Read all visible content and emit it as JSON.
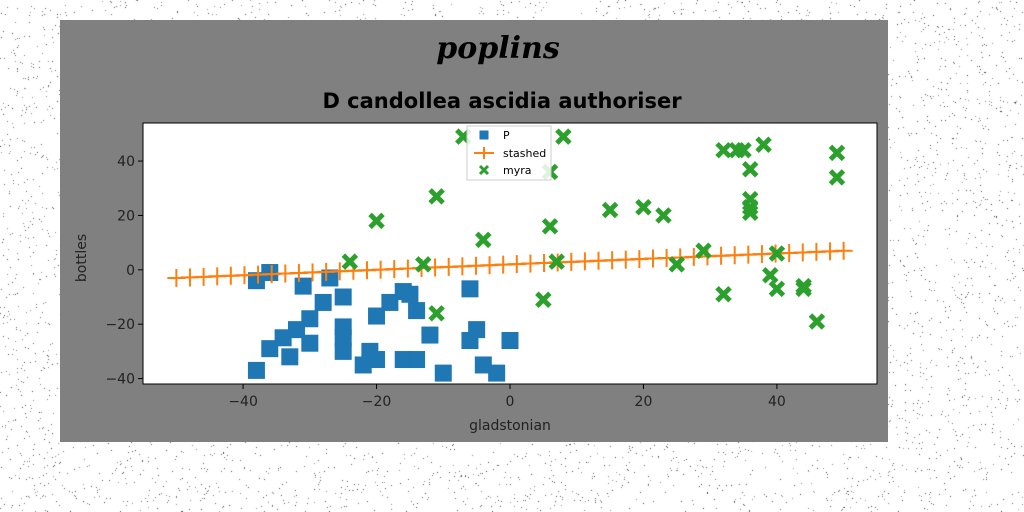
{
  "figure": {
    "suptitle": "poplins",
    "outer_background": "#808080",
    "plot_background": "#ffffff"
  },
  "chart_data": {
    "type": "scatter",
    "title": "D candollea ascidia authoriser",
    "xlabel": "gladstonian",
    "ylabel": "bottles",
    "xlim": [
      -55,
      55
    ],
    "ylim": [
      -42,
      54
    ],
    "xticks": [
      -40,
      -20,
      0,
      20,
      40
    ],
    "yticks": [
      -40,
      -20,
      0,
      20,
      40
    ],
    "grid": false,
    "legend_position": "top-center",
    "series": [
      {
        "name": "P",
        "marker": "square",
        "color": "#1f77b4",
        "points": [
          [
            -38,
            -4
          ],
          [
            -36,
            -1
          ],
          [
            -31,
            -6
          ],
          [
            -27,
            -3
          ],
          [
            -28,
            -12
          ],
          [
            -25,
            -10
          ],
          [
            -30,
            -18
          ],
          [
            -32,
            -22
          ],
          [
            -34,
            -25
          ],
          [
            -30,
            -27
          ],
          [
            -36,
            -29
          ],
          [
            -33,
            -32
          ],
          [
            -38,
            -37
          ],
          [
            -25,
            -21
          ],
          [
            -25,
            -25
          ],
          [
            -25,
            -30
          ],
          [
            -20,
            -17
          ],
          [
            -18,
            -12
          ],
          [
            -16,
            -8
          ],
          [
            -15,
            -9
          ],
          [
            -14,
            -15
          ],
          [
            -12,
            -24
          ],
          [
            -21,
            -30
          ],
          [
            -20,
            -33
          ],
          [
            -22,
            -35
          ],
          [
            -16,
            -33
          ],
          [
            -14,
            -33
          ],
          [
            -10,
            -38
          ],
          [
            -6,
            -26
          ],
          [
            -5,
            -22
          ],
          [
            -6,
            -7
          ],
          [
            -4,
            -35
          ],
          [
            -2,
            -38
          ],
          [
            0,
            -26
          ]
        ]
      },
      {
        "name": "stashed",
        "marker": "plus-line",
        "color": "#ff7f0e",
        "x_start": -50,
        "x_end": 50,
        "n_points": 50,
        "y_start": -3,
        "y_end": 7
      },
      {
        "name": "myra",
        "marker": "x",
        "color": "#2ca02c",
        "points": [
          [
            -7,
            49
          ],
          [
            8,
            49
          ],
          [
            6,
            36
          ],
          [
            -11,
            27
          ],
          [
            -20,
            18
          ],
          [
            -4,
            11
          ],
          [
            6,
            16
          ],
          [
            15,
            22
          ],
          [
            20,
            23
          ],
          [
            23,
            20
          ],
          [
            32,
            44
          ],
          [
            34,
            44
          ],
          [
            35,
            44
          ],
          [
            38,
            46
          ],
          [
            36,
            37
          ],
          [
            36,
            26
          ],
          [
            36,
            23
          ],
          [
            36,
            21
          ],
          [
            49,
            43
          ],
          [
            49,
            34
          ],
          [
            -24,
            3
          ],
          [
            -13,
            2
          ],
          [
            7,
            3
          ],
          [
            25,
            2
          ],
          [
            29,
            7
          ],
          [
            40,
            6
          ],
          [
            39,
            -2
          ],
          [
            40,
            -7
          ],
          [
            44,
            -6
          ],
          [
            44,
            -7
          ],
          [
            46,
            -19
          ],
          [
            32,
            -9
          ],
          [
            5,
            -11
          ],
          [
            -11,
            -16
          ]
        ]
      }
    ]
  }
}
